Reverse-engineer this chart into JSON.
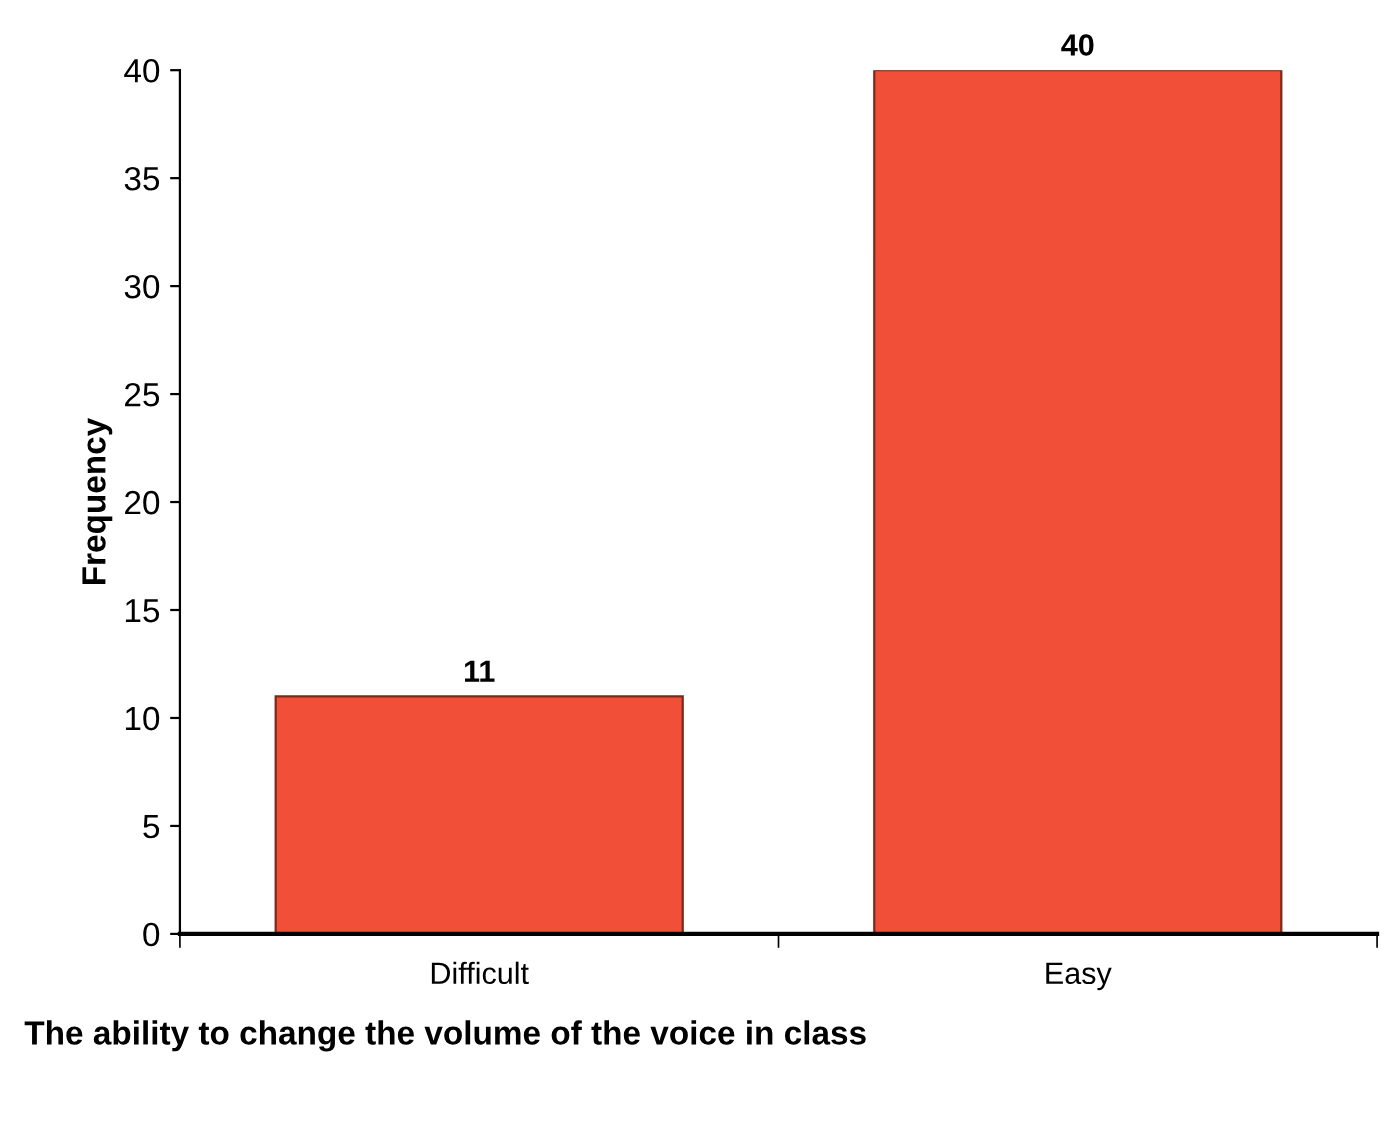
{
  "chart_data": {
    "type": "bar",
    "xlabel": "The ability to change the volume of the voice in class",
    "ylabel": "Frequency",
    "categories": [
      "Difficult",
      "Easy"
    ],
    "values": [
      11,
      40
    ],
    "color": "#f24f38",
    "ylim": [
      0,
      40
    ],
    "yticks": [
      0,
      5,
      10,
      15,
      20,
      25,
      30,
      35,
      40
    ],
    "grid": false,
    "data_labels": true
  }
}
